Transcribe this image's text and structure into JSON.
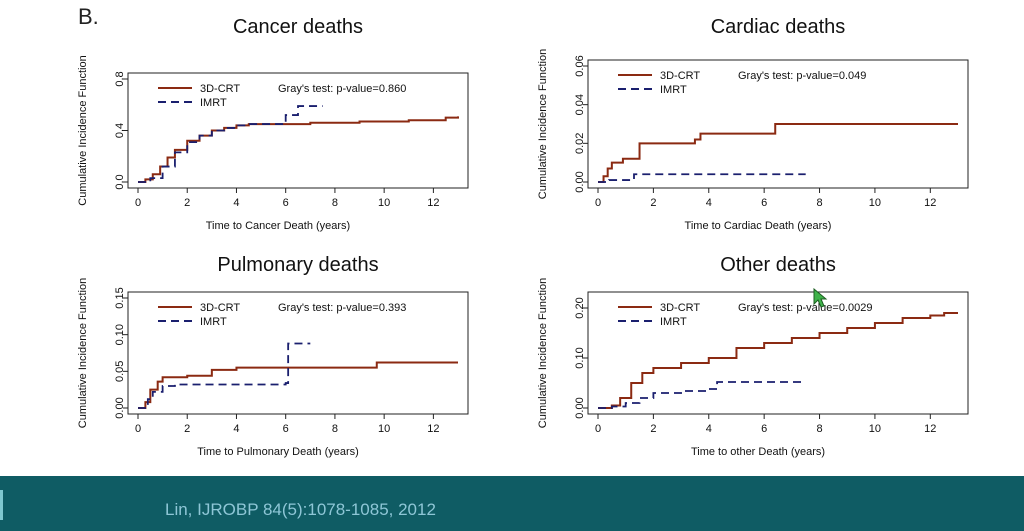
{
  "figure_label": "B.",
  "citation": "Lin, IJROBP 84(5):1078-1085, 2012",
  "colors": {
    "crt": "#8b2a12",
    "imrt": "#1a1f6e",
    "footer": "#0f5c64",
    "citation": "#8ec6d6"
  },
  "chart_data": [
    {
      "type": "line",
      "title": "Cancer deaths",
      "xlabel": "Time to Cancer Death (years)",
      "ylabel": "Cumulative Incidence Function",
      "xlim": [
        0,
        13
      ],
      "ylim": [
        0,
        0.8
      ],
      "xticks": [
        0,
        2,
        4,
        6,
        8,
        10,
        12
      ],
      "yticks": [
        0.0,
        0.4,
        0.8
      ],
      "test_text": "Gray's test: p-value=0.860",
      "series": [
        {
          "name": "3D-CRT",
          "style": "solid",
          "points": [
            [
              0,
              0
            ],
            [
              0.3,
              0.02
            ],
            [
              0.6,
              0.06
            ],
            [
              0.9,
              0.12
            ],
            [
              1.2,
              0.19
            ],
            [
              1.5,
              0.25
            ],
            [
              2.0,
              0.32
            ],
            [
              2.5,
              0.36
            ],
            [
              3.0,
              0.4
            ],
            [
              3.5,
              0.42
            ],
            [
              4.0,
              0.44
            ],
            [
              4.5,
              0.45
            ],
            [
              5.0,
              0.45
            ],
            [
              7.0,
              0.46
            ],
            [
              9.0,
              0.47
            ],
            [
              11.0,
              0.48
            ],
            [
              12.5,
              0.5
            ],
            [
              13.0,
              0.51
            ]
          ]
        },
        {
          "name": "IMRT",
          "style": "dashed",
          "points": [
            [
              0,
              0
            ],
            [
              0.5,
              0.03
            ],
            [
              1.0,
              0.12
            ],
            [
              1.5,
              0.23
            ],
            [
              2.0,
              0.31
            ],
            [
              2.5,
              0.36
            ],
            [
              3.0,
              0.4
            ],
            [
              3.5,
              0.42
            ],
            [
              4.0,
              0.44
            ],
            [
              4.5,
              0.45
            ],
            [
              5.5,
              0.45
            ],
            [
              6.0,
              0.52
            ],
            [
              6.5,
              0.59
            ],
            [
              7.5,
              0.59
            ]
          ]
        }
      ]
    },
    {
      "type": "line",
      "title": "Cardiac deaths",
      "xlabel": "Time to Cardiac Death (years)",
      "ylabel": "Cumulative Incidence Function",
      "xlim": [
        0,
        13
      ],
      "ylim": [
        0,
        0.06
      ],
      "xticks": [
        0,
        2,
        4,
        6,
        8,
        10,
        12
      ],
      "yticks": [
        0.0,
        0.02,
        0.04,
        0.06
      ],
      "test_text": "Gray's test: p-value=0.049",
      "series": [
        {
          "name": "3D-CRT",
          "style": "solid",
          "points": [
            [
              0,
              0
            ],
            [
              0.2,
              0.003
            ],
            [
              0.35,
              0.007
            ],
            [
              0.5,
              0.01
            ],
            [
              0.9,
              0.012
            ],
            [
              1.5,
              0.02
            ],
            [
              3.5,
              0.022
            ],
            [
              3.7,
              0.025
            ],
            [
              6.2,
              0.025
            ],
            [
              6.4,
              0.03
            ],
            [
              13.0,
              0.03
            ]
          ]
        },
        {
          "name": "IMRT",
          "style": "dashed",
          "points": [
            [
              0,
              0
            ],
            [
              0.4,
              0.001
            ],
            [
              1.2,
              0.001
            ],
            [
              1.3,
              0.004
            ],
            [
              7.5,
              0.004
            ]
          ]
        }
      ]
    },
    {
      "type": "line",
      "title": "Pulmonary deaths",
      "xlabel": "Time to Pulmonary Death (years)",
      "ylabel": "Cumulative Incidence Function",
      "xlim": [
        0,
        13
      ],
      "ylim": [
        0,
        0.15
      ],
      "xticks": [
        0,
        2,
        4,
        6,
        8,
        10,
        12
      ],
      "yticks": [
        0.0,
        0.05,
        0.1,
        0.15
      ],
      "test_text": "Gray's test: p-value=0.393",
      "series": [
        {
          "name": "3D-CRT",
          "style": "solid",
          "points": [
            [
              0,
              0
            ],
            [
              0.3,
              0.008
            ],
            [
              0.5,
              0.025
            ],
            [
              0.8,
              0.036
            ],
            [
              1.0,
              0.042
            ],
            [
              2.0,
              0.044
            ],
            [
              3.0,
              0.052
            ],
            [
              4.0,
              0.055
            ],
            [
              9.5,
              0.055
            ],
            [
              9.7,
              0.062
            ],
            [
              13.0,
              0.062
            ]
          ]
        },
        {
          "name": "IMRT",
          "style": "dashed",
          "points": [
            [
              0,
              0
            ],
            [
              0.4,
              0.012
            ],
            [
              0.6,
              0.022
            ],
            [
              1.0,
              0.03
            ],
            [
              1.5,
              0.032
            ],
            [
              6.0,
              0.034
            ],
            [
              6.1,
              0.088
            ],
            [
              7.0,
              0.088
            ]
          ]
        }
      ]
    },
    {
      "type": "line",
      "title": "Other deaths",
      "xlabel": "Time to other Death (years)",
      "ylabel": "Cumulative Incidence Function",
      "xlim": [
        0,
        13
      ],
      "ylim": [
        0,
        0.22
      ],
      "xticks": [
        0,
        2,
        4,
        6,
        8,
        10,
        12
      ],
      "yticks": [
        0.0,
        0.1,
        0.2
      ],
      "test_text": "Gray's test: p-value=0.0029",
      "series": [
        {
          "name": "3D-CRT",
          "style": "solid",
          "points": [
            [
              0,
              0
            ],
            [
              0.5,
              0.005
            ],
            [
              0.8,
              0.02
            ],
            [
              1.2,
              0.05
            ],
            [
              1.6,
              0.07
            ],
            [
              2.0,
              0.08
            ],
            [
              3.0,
              0.09
            ],
            [
              4.0,
              0.1
            ],
            [
              5.0,
              0.12
            ],
            [
              6.0,
              0.13
            ],
            [
              7.0,
              0.14
            ],
            [
              8.0,
              0.15
            ],
            [
              9.0,
              0.16
            ],
            [
              10.0,
              0.17
            ],
            [
              11.0,
              0.18
            ],
            [
              12.0,
              0.185
            ],
            [
              12.5,
              0.19
            ],
            [
              13.0,
              0.19
            ]
          ]
        },
        {
          "name": "IMRT",
          "style": "dashed",
          "points": [
            [
              0,
              0
            ],
            [
              0.5,
              0.003
            ],
            [
              1.0,
              0.01
            ],
            [
              1.5,
              0.02
            ],
            [
              2.0,
              0.03
            ],
            [
              3.0,
              0.034
            ],
            [
              4.0,
              0.038
            ],
            [
              4.3,
              0.052
            ],
            [
              7.5,
              0.052
            ]
          ]
        }
      ]
    }
  ]
}
